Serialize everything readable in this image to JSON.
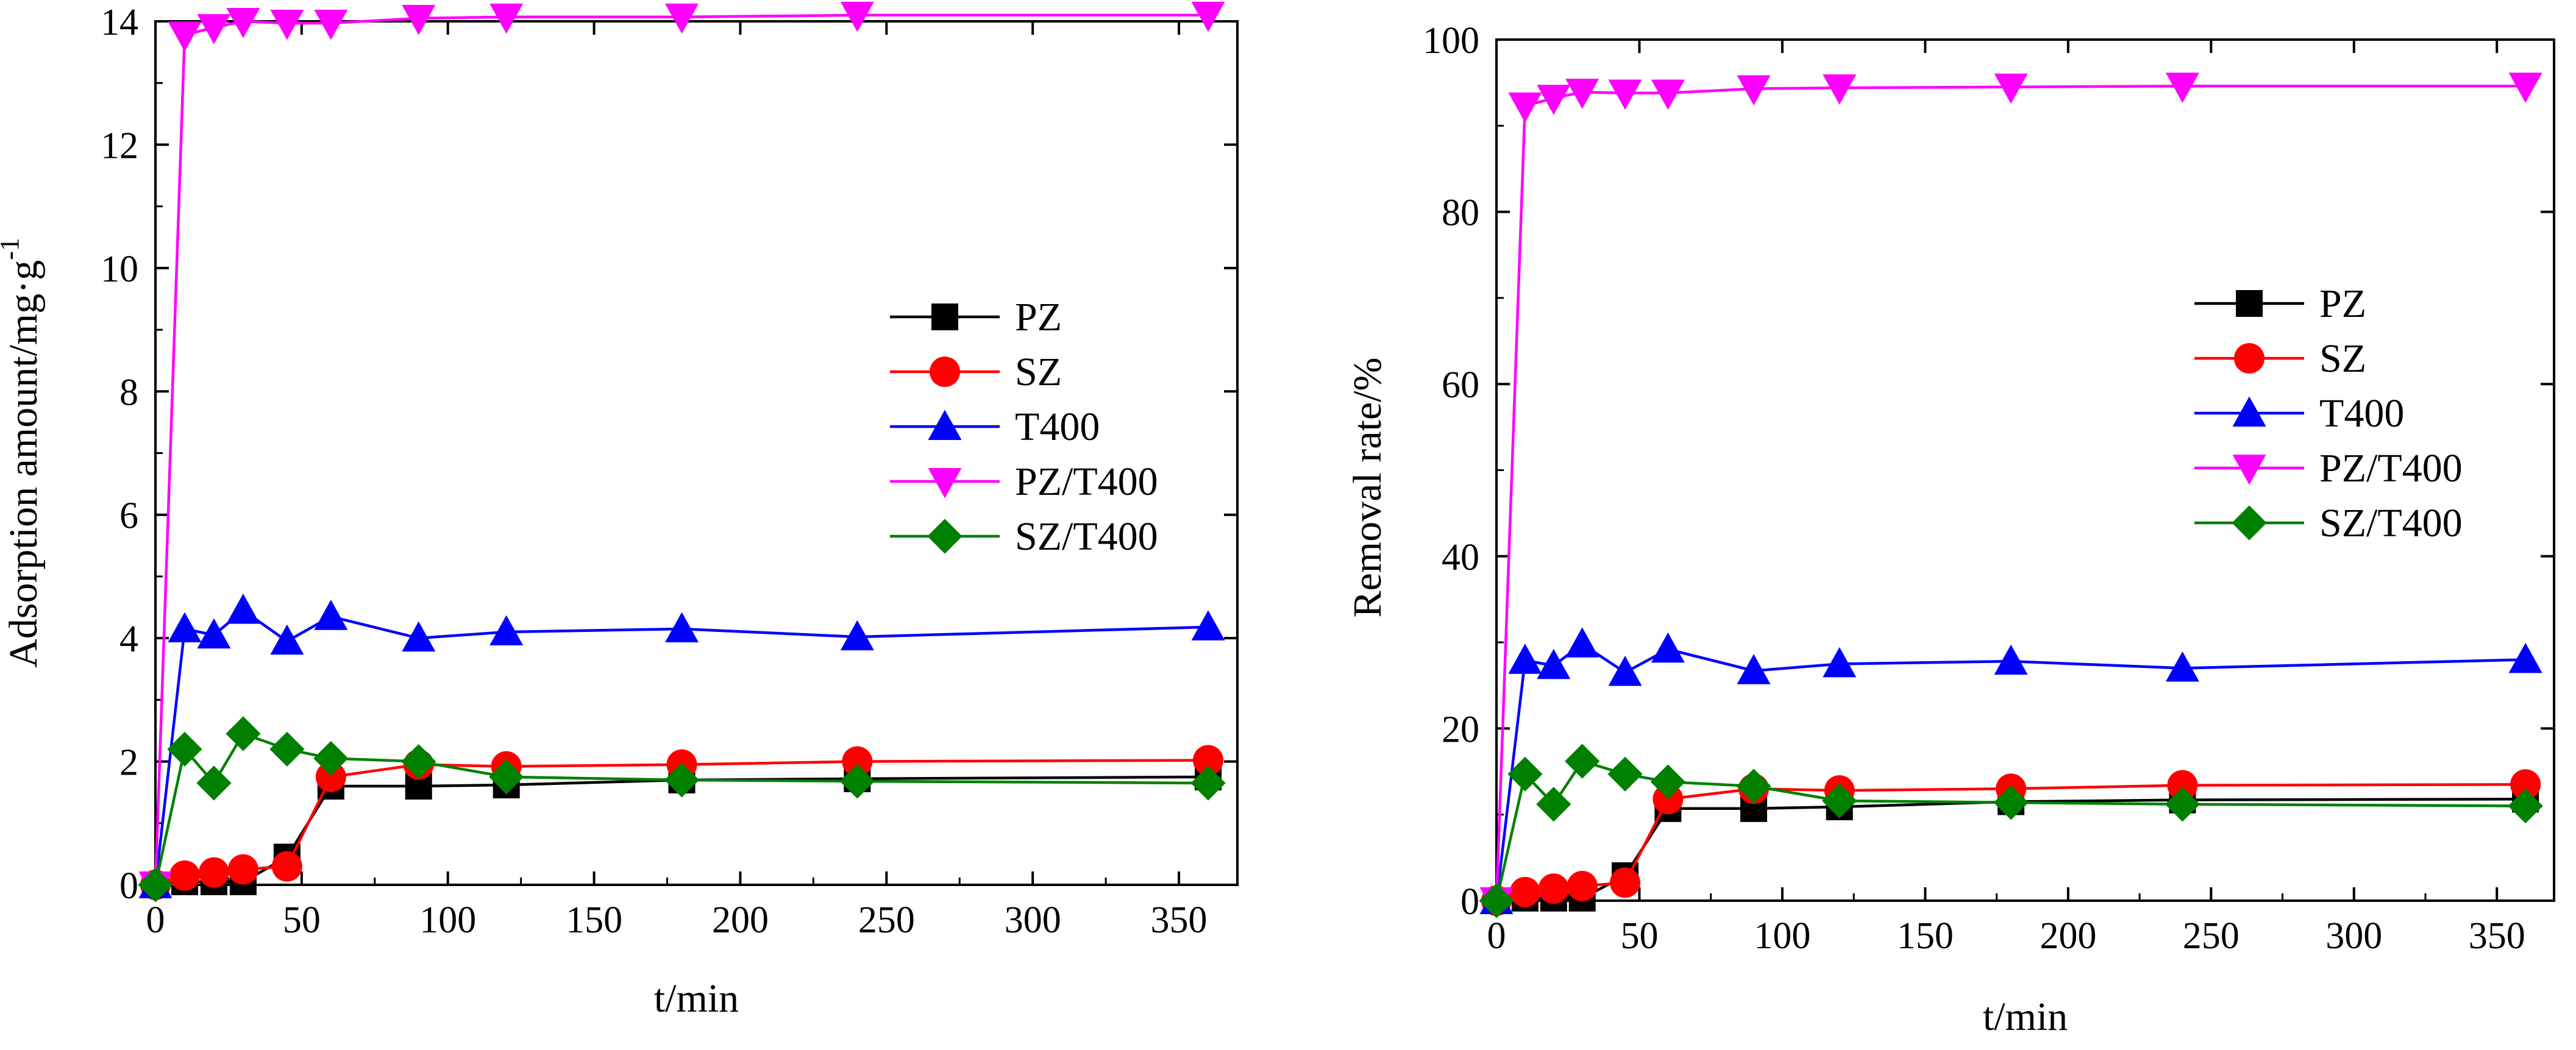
{
  "chart_data": [
    {
      "type": "line",
      "title": "",
      "xlabel": "t/min",
      "ylabel": "Adsorption amount/mg·g",
      "ylabel_superscript": "-1",
      "xlim": [
        0,
        370
      ],
      "ylim": [
        0,
        14
      ],
      "xticks": [
        0,
        50,
        100,
        150,
        200,
        250,
        300,
        350
      ],
      "yticks": [
        0,
        2,
        4,
        6,
        8,
        10,
        12,
        14
      ],
      "grid": false,
      "legend_position": "center-right",
      "x": [
        0,
        10,
        20,
        30,
        45,
        60,
        90,
        120,
        180,
        240,
        360
      ],
      "series": [
        {
          "name": "PZ",
          "color": "#000000",
          "marker": "square",
          "values": [
            0,
            0.05,
            0.05,
            0.05,
            0.45,
            1.6,
            1.6,
            1.62,
            1.7,
            1.72,
            1.75
          ]
        },
        {
          "name": "SZ",
          "color": "#ff0000",
          "marker": "circle",
          "values": [
            0,
            0.15,
            0.2,
            0.25,
            0.3,
            1.75,
            1.95,
            1.92,
            1.95,
            2.0,
            2.02
          ]
        },
        {
          "name": "T400",
          "color": "#0000ff",
          "marker": "triangle-up",
          "values": [
            0,
            4.15,
            4.05,
            4.45,
            3.95,
            4.35,
            4.0,
            4.1,
            4.15,
            4.02,
            4.18
          ]
        },
        {
          "name": "PZ/T400",
          "color": "#ff00ff",
          "marker": "triangle-down",
          "values": [
            0,
            13.78,
            13.9,
            14.0,
            13.97,
            13.97,
            14.05,
            14.07,
            14.07,
            14.1,
            14.1
          ]
        },
        {
          "name": "SZ/T400",
          "color": "#008000",
          "marker": "diamond",
          "values": [
            0,
            2.2,
            1.65,
            2.45,
            2.2,
            2.05,
            2.0,
            1.75,
            1.7,
            1.68,
            1.65
          ]
        }
      ]
    },
    {
      "type": "line",
      "title": "",
      "xlabel": "t/min",
      "ylabel": "Removal rate/%",
      "xlim": [
        0,
        370
      ],
      "ylim": [
        0,
        100
      ],
      "xticks": [
        0,
        50,
        100,
        150,
        200,
        250,
        300,
        350
      ],
      "yticks": [
        0,
        20,
        40,
        60,
        80,
        100
      ],
      "grid": false,
      "legend_position": "center-right",
      "x": [
        0,
        10,
        20,
        30,
        45,
        60,
        90,
        120,
        180,
        240,
        360
      ],
      "series": [
        {
          "name": "PZ",
          "color": "#000000",
          "marker": "square",
          "values": [
            0,
            0.3,
            0.3,
            0.3,
            2.9,
            10.7,
            10.7,
            10.9,
            11.5,
            11.7,
            11.8
          ]
        },
        {
          "name": "SZ",
          "color": "#ff0000",
          "marker": "circle",
          "values": [
            0,
            1.0,
            1.4,
            1.7,
            2.1,
            11.8,
            13.0,
            12.8,
            13.0,
            13.4,
            13.5
          ]
        },
        {
          "name": "T400",
          "color": "#0000ff",
          "marker": "triangle-up",
          "values": [
            0,
            27.9,
            27.3,
            29.8,
            26.5,
            29.2,
            26.7,
            27.5,
            27.8,
            27.0,
            28.0
          ]
        },
        {
          "name": "PZ/T400",
          "color": "#ff00ff",
          "marker": "triangle-down",
          "values": [
            0,
            92.3,
            93.2,
            93.9,
            93.8,
            93.8,
            94.3,
            94.4,
            94.5,
            94.6,
            94.6
          ]
        },
        {
          "name": "SZ/T400",
          "color": "#008000",
          "marker": "diamond",
          "values": [
            0,
            14.7,
            11.2,
            16.2,
            14.7,
            13.8,
            13.3,
            11.6,
            11.4,
            11.2,
            11.0
          ]
        }
      ]
    }
  ]
}
